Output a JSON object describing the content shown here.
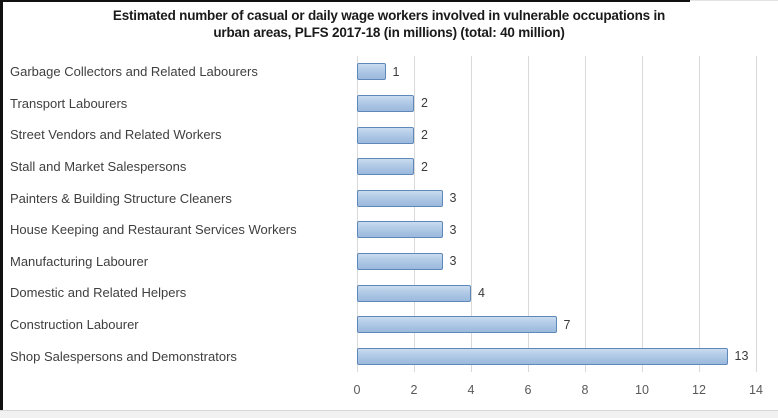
{
  "title": {
    "line1": "Estimated number of casual or daily wage workers involved in vulnerable occupations in",
    "line2": "urban areas, PLFS 2017-18 (in millions) (total: 40 million)"
  },
  "chart_data": {
    "type": "bar",
    "orientation": "horizontal",
    "title": "Estimated number of casual or daily wage workers involved in vulnerable occupations in urban areas, PLFS 2017-18 (in millions) (total: 40 million)",
    "categories": [
      "Garbage Collectors and Related Labourers",
      "Transport Labourers",
      "Street Vendors and Related Workers",
      "Stall and Market Salespersons",
      "Painters & Building Structure Cleaners",
      "House Keeping and Restaurant Services Workers",
      "Manufacturing Labourer",
      "Domestic and Related Helpers",
      "Construction Labourer",
      "Shop Salespersons and Demonstrators"
    ],
    "values": [
      1,
      2,
      2,
      2,
      3,
      3,
      3,
      4,
      7,
      13
    ],
    "total_million": 40,
    "xlim": [
      0,
      14
    ],
    "xticks": [
      0,
      2,
      4,
      6,
      8,
      10,
      12,
      14
    ],
    "grid": true,
    "legend": false,
    "data_labels": true,
    "colors": {
      "bar_fill": "#aac5e4",
      "bar_fill_light": "#cadbee",
      "bar_border": "#5f88ba",
      "gridline": "#d9d9d9",
      "category_text": "#3f3f3f",
      "value_text": "#3b3b3b",
      "tick_text": "#595959",
      "title_text": "#1a1a1a",
      "frame": "#111111"
    }
  }
}
